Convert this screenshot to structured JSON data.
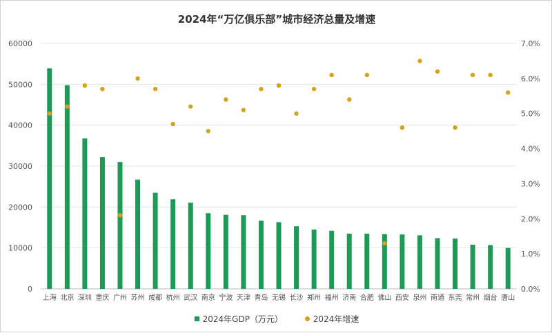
{
  "chart_data": {
    "type": "bar",
    "title": "2024年“万亿俱乐部”城市经济总量及增速",
    "categories": [
      "上海",
      "北京",
      "深圳",
      "重庆",
      "广州",
      "苏州",
      "成都",
      "杭州",
      "武汉",
      "南京",
      "宁波",
      "天津",
      "青岛",
      "无锡",
      "长沙",
      "郑州",
      "福州",
      "济南",
      "合肥",
      "佛山",
      "西安",
      "泉州",
      "南通",
      "东莞",
      "常州",
      "烟台",
      "唐山"
    ],
    "series": [
      {
        "name": "2024年GDP（万元）",
        "type": "bar",
        "axis": "left",
        "color": "#1e9a56",
        "values": [
          53900,
          49800,
          36800,
          32200,
          31000,
          26700,
          23500,
          21900,
          21100,
          18500,
          18100,
          18000,
          16700,
          16300,
          15300,
          14500,
          14200,
          13500,
          13500,
          13400,
          13300,
          13100,
          12400,
          12300,
          10800,
          10700,
          10000
        ]
      },
      {
        "name": "2024年增速",
        "type": "scatter",
        "axis": "right",
        "color": "#d4a21c",
        "values": [
          5.0,
          5.2,
          5.8,
          5.7,
          2.1,
          6.0,
          5.7,
          4.7,
          5.2,
          4.5,
          5.4,
          5.1,
          5.7,
          5.8,
          5.0,
          5.7,
          6.1,
          5.4,
          6.1,
          1.3,
          4.6,
          6.5,
          6.2,
          4.6,
          6.1,
          6.1,
          5.6
        ]
      }
    ],
    "y_left": {
      "ticks": [
        "0",
        "10000",
        "20000",
        "30000",
        "40000",
        "50000",
        "60000"
      ],
      "ylim": [
        0,
        60000
      ]
    },
    "y_right": {
      "ticks": [
        "0.0%",
        "1.0%",
        "2.0%",
        "3.0%",
        "4.0%",
        "5.0%",
        "6.0%",
        "7.0%"
      ],
      "ylim": [
        0,
        7
      ]
    },
    "grid": true,
    "legend_position": "bottom"
  }
}
